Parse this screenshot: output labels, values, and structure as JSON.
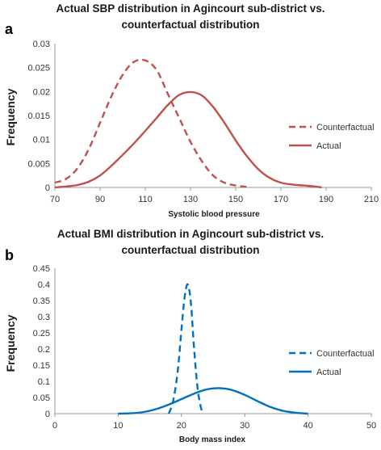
{
  "chart_data": [
    {
      "panel": "a",
      "type": "line",
      "title_line1": "Actual SBP distribution in Agincourt sub-district vs.",
      "title_line2": "counterfactual distribution",
      "xlabel": "Systolic blood pressure",
      "ylabel": "Frequency",
      "xlim": [
        70,
        210
      ],
      "ylim": [
        0,
        0.03
      ],
      "xticks": [
        70,
        90,
        110,
        130,
        150,
        170,
        190,
        210
      ],
      "yticks": [
        0,
        0.005,
        0.01,
        0.015,
        0.02,
        0.025,
        0.03
      ],
      "yticklabels": [
        "0",
        "0.005",
        "0.01",
        "0.015",
        "0.02",
        "0.025",
        "0.03"
      ],
      "legend_position": "right",
      "series": [
        {
          "name": "Counterfactual",
          "style": "dashed",
          "color": "#C0504D",
          "x": [
            70,
            75,
            80,
            85,
            90,
            95,
            100,
            105,
            110,
            115,
            120,
            125,
            130,
            135,
            140,
            145,
            150,
            155
          ],
          "y": [
            0.001,
            0.0018,
            0.004,
            0.008,
            0.0135,
            0.019,
            0.0235,
            0.0262,
            0.0265,
            0.0245,
            0.0195,
            0.0145,
            0.0095,
            0.0055,
            0.0025,
            0.001,
            0.0004,
            0.0001
          ]
        },
        {
          "name": "Actual",
          "style": "solid",
          "color": "#C0504D",
          "x": [
            70,
            75,
            80,
            85,
            90,
            95,
            100,
            105,
            110,
            115,
            120,
            125,
            130,
            135,
            140,
            145,
            150,
            155,
            160,
            165,
            170,
            175,
            180,
            185,
            188
          ],
          "y": [
            0,
            0.0002,
            0.0005,
            0.0012,
            0.0025,
            0.0045,
            0.0068,
            0.0092,
            0.0118,
            0.0145,
            0.0172,
            0.0193,
            0.0199,
            0.0192,
            0.0168,
            0.0135,
            0.0098,
            0.0065,
            0.0038,
            0.002,
            0.001,
            0.0006,
            0.0004,
            0.0002,
            0
          ]
        }
      ]
    },
    {
      "panel": "b",
      "type": "line",
      "title_line1": "Actual BMI  distribution in Agincourt sub-district vs.",
      "title_line2": "counterfactual distribution",
      "xlabel": "Body mass index",
      "ylabel": "Frequency",
      "xlim": [
        0,
        50
      ],
      "ylim": [
        0,
        0.45
      ],
      "xticks": [
        0,
        10,
        20,
        30,
        40,
        50
      ],
      "yticks": [
        0,
        0.05,
        0.1,
        0.15,
        0.2,
        0.25,
        0.3,
        0.35,
        0.4,
        0.45
      ],
      "yticklabels": [
        "0",
        "0.05",
        "0.1",
        "0.15",
        "0.2",
        "0.25",
        "0.3",
        "0.35",
        "0.4",
        "0.45"
      ],
      "legend_position": "right",
      "series": [
        {
          "name": "Counterfactual",
          "style": "dashed",
          "color": "#0070C0",
          "x": [
            18,
            18.7,
            19.4,
            20,
            20.5,
            21,
            21.5,
            22,
            22.6,
            23.3
          ],
          "y": [
            0,
            0.04,
            0.13,
            0.26,
            0.36,
            0.4,
            0.34,
            0.2,
            0.07,
            0
          ]
        },
        {
          "name": "Actual",
          "style": "solid",
          "color": "#0070C0",
          "x": [
            10,
            12,
            14,
            16,
            18,
            20,
            22,
            24,
            26,
            28,
            30,
            32,
            34,
            36,
            38,
            40
          ],
          "y": [
            0,
            0.001,
            0.005,
            0.014,
            0.028,
            0.045,
            0.062,
            0.075,
            0.079,
            0.073,
            0.058,
            0.039,
            0.021,
            0.009,
            0.003,
            0
          ]
        }
      ]
    }
  ]
}
